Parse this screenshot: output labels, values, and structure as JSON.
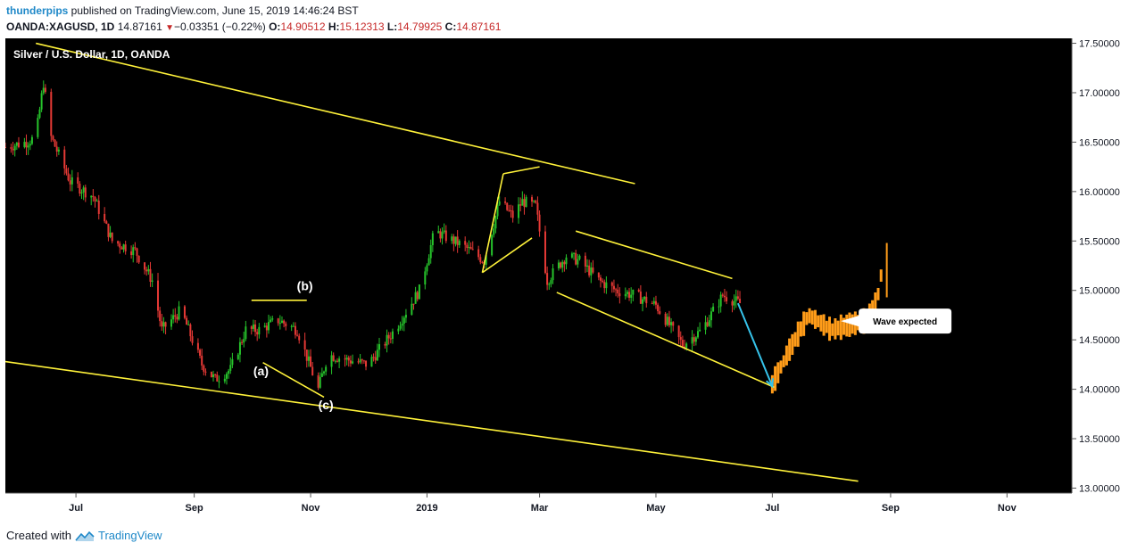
{
  "header": {
    "author": "thunderpips",
    "published_text": "published on TradingView.com, June 15, 2019 14:46:24 BST",
    "symbol": "OANDA:XAGUSD, 1D",
    "last_price": "14.87161",
    "change": "−0.03351 (−0.22%)",
    "open_label": "O:",
    "open_value": "14.90512",
    "high_label": "H:",
    "high_value": "15.12313",
    "low_label": "L:",
    "low_value": "14.79925",
    "close_label": "C:",
    "close_value": "14.87161"
  },
  "footer": {
    "created_with": "Created with",
    "brand": "TradingView"
  },
  "chart_data": {
    "type": "candlestick",
    "title": "Silver / U.S. Dollar, 1D, OANDA",
    "colors": {
      "background": "#000000",
      "up": "#26c32b",
      "down": "#e53935",
      "trendline": "#fff23a",
      "projection": "#ff9c19",
      "arrow": "#36c3ea",
      "axis_text": "#131722"
    },
    "y_axis": {
      "min": 12.95,
      "max": 17.55,
      "ticks": [
        "13.00000",
        "13.50000",
        "14.00000",
        "14.50000",
        "15.00000",
        "15.50000",
        "16.00000",
        "16.50000",
        "17.00000",
        "17.50000"
      ]
    },
    "x_axis": {
      "start": "2018-05-25",
      "end": "2019-12-05",
      "ticks": [
        {
          "label": "Jul",
          "date": "2018-07-01"
        },
        {
          "label": "Sep",
          "date": "2018-09-01"
        },
        {
          "label": "Nov",
          "date": "2018-11-01"
        },
        {
          "label": "2019",
          "date": "2019-01-01"
        },
        {
          "label": "Mar",
          "date": "2019-03-01"
        },
        {
          "label": "May",
          "date": "2019-05-01"
        },
        {
          "label": "Jul",
          "date": "2019-07-01"
        },
        {
          "label": "Sep",
          "date": "2019-09-01"
        },
        {
          "label": "Nov",
          "date": "2019-11-01"
        }
      ]
    },
    "price_path": [
      [
        "2018-05-25",
        16.45
      ],
      [
        "2018-06-05",
        16.5
      ],
      [
        "2018-06-10",
        16.55
      ],
      [
        "2018-06-14",
        17.1
      ],
      [
        "2018-06-18",
        16.55
      ],
      [
        "2018-06-28",
        16.1
      ],
      [
        "2018-07-10",
        15.95
      ],
      [
        "2018-07-20",
        15.5
      ],
      [
        "2018-08-01",
        15.4
      ],
      [
        "2018-08-10",
        15.1
      ],
      [
        "2018-08-15",
        14.6
      ],
      [
        "2018-08-25",
        14.8
      ],
      [
        "2018-09-05",
        14.25
      ],
      [
        "2018-09-12",
        14.1
      ],
      [
        "2018-09-20",
        14.2
      ],
      [
        "2018-09-28",
        14.6
      ],
      [
        "2018-10-05",
        14.6
      ],
      [
        "2018-10-15",
        14.7
      ],
      [
        "2018-10-25",
        14.6
      ],
      [
        "2018-11-05",
        14.0
      ],
      [
        "2018-11-10",
        14.35
      ],
      [
        "2018-11-20",
        14.3
      ],
      [
        "2018-12-01",
        14.25
      ],
      [
        "2018-12-15",
        14.6
      ],
      [
        "2018-12-28",
        15.0
      ],
      [
        "2019-01-05",
        15.6
      ],
      [
        "2019-01-20",
        15.45
      ],
      [
        "2019-01-31",
        15.3
      ],
      [
        "2019-02-08",
        15.9
      ],
      [
        "2019-02-15",
        15.75
      ],
      [
        "2019-02-20",
        15.9
      ],
      [
        "2019-02-27",
        15.85
      ],
      [
        "2019-03-05",
        15.1
      ],
      [
        "2019-03-15",
        15.35
      ],
      [
        "2019-03-22",
        15.3
      ],
      [
        "2019-04-01",
        15.1
      ],
      [
        "2019-04-10",
        15.0
      ],
      [
        "2019-04-20",
        14.95
      ],
      [
        "2019-05-01",
        14.85
      ],
      [
        "2019-05-15",
        14.45
      ],
      [
        "2019-05-25",
        14.6
      ],
      [
        "2019-06-05",
        14.95
      ],
      [
        "2019-06-14",
        14.87
      ]
    ],
    "projection": [
      [
        "2019-07-01",
        14.05
      ],
      [
        "2019-07-10",
        14.4
      ],
      [
        "2019-07-20",
        14.75
      ],
      [
        "2019-08-01",
        14.6
      ],
      [
        "2019-08-10",
        14.65
      ],
      [
        "2019-08-20",
        14.7
      ],
      [
        "2019-08-25",
        14.9
      ],
      [
        "2019-08-27",
        15.15
      ]
    ],
    "annotations": [
      {
        "text": "(a)",
        "date": "2018-10-06",
        "price": 14.14
      },
      {
        "text": "(b)",
        "date": "2018-10-29",
        "price": 15.0
      },
      {
        "text": "(c)",
        "date": "2018-11-09",
        "price": 13.8
      },
      {
        "text": "Wave expected",
        "date": "2019-08-19",
        "price": 14.69
      }
    ]
  }
}
